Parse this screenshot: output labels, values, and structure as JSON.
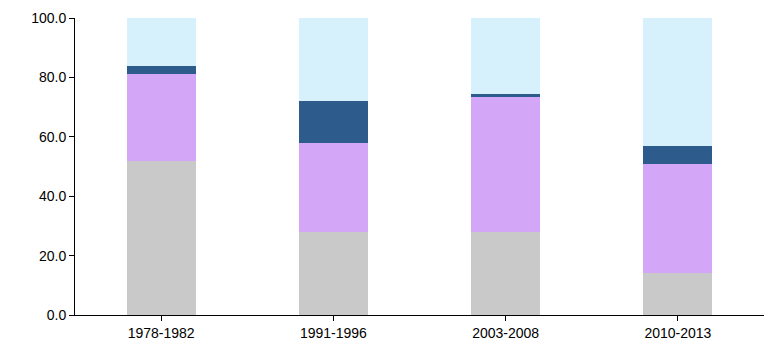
{
  "chart_data": {
    "type": "bar",
    "stacked": true,
    "grid": false,
    "categories": [
      "1978-1982",
      "1991-1996",
      "2003-2008",
      "2010-2013"
    ],
    "series": [
      {
        "color": "#c9c9c9",
        "values": [
          52,
          28,
          28,
          14
        ]
      },
      {
        "color": "#d4a6f7",
        "values": [
          29,
          30,
          45.5,
          37
        ]
      },
      {
        "color": "#2d5b8c",
        "values": [
          3,
          14,
          1,
          6
        ]
      },
      {
        "color": "#d6f1fb",
        "values": [
          16,
          28,
          25.5,
          43
        ]
      }
    ],
    "ylim": [
      0,
      100
    ],
    "yticks": [
      {
        "value": 0,
        "label": "0.0"
      },
      {
        "value": 20,
        "label": "20.0"
      },
      {
        "value": 40,
        "label": "40.0"
      },
      {
        "value": 60,
        "label": "60.0"
      },
      {
        "value": 80,
        "label": "80.0"
      },
      {
        "value": 100,
        "label": "100.0"
      }
    ]
  }
}
